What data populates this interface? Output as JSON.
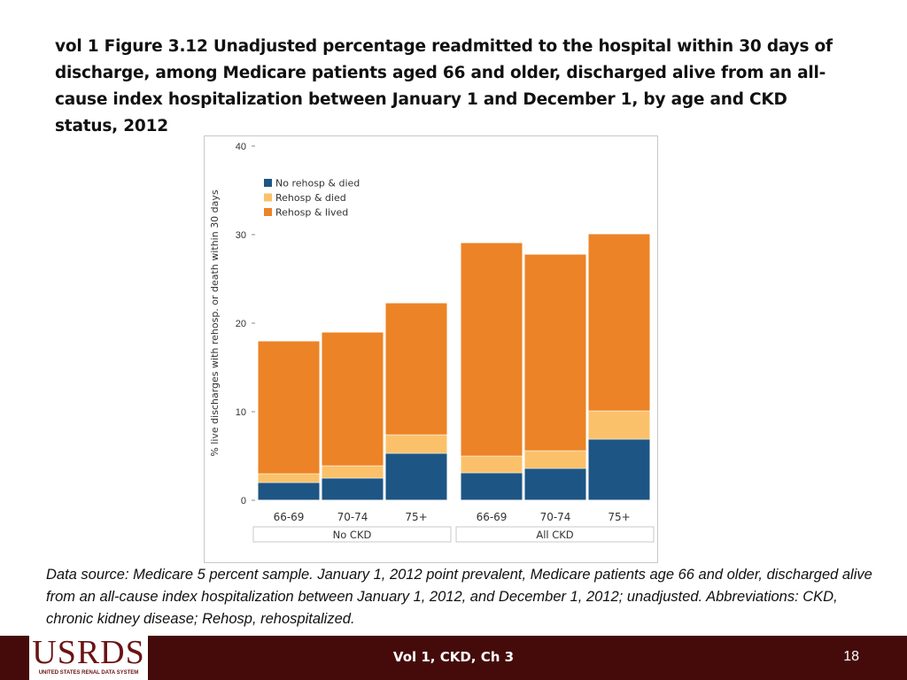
{
  "slide": {
    "title": "vol 1 Figure 3.12  Unadjusted percentage readmitted to the hospital within 30 days of discharge, among Medicare patients aged 66 and older, discharged alive from an all-cause index hospitalization between January 1 and December 1, by age and CKD status, 2012",
    "source": "Data source: Medicare 5 percent sample. January 1, 2012 point prevalent, Medicare patients age 66 and older, discharged alive from an all-cause index hospitalization between January 1, 2012, and December 1, 2012; unadjusted. Abbreviations: CKD, chronic kidney disease; Rehosp, rehospitalized.",
    "footer_center": "Vol 1, CKD, Ch 3",
    "page_number": "18",
    "logo_main": "USRDS",
    "logo_sub": "UNITED STATES RENAL DATA SYSTEM"
  },
  "colors": {
    "no_rehosp_died": "#1d5584",
    "rehosp_died": "#fbc16a",
    "rehosp_lived": "#ec8326",
    "footer_bg": "#450b0b"
  },
  "chart_data": {
    "type": "bar",
    "stacked": true,
    "title": "",
    "xlabel": "",
    "ylabel": "% live discharges with rehosp. or death within 30 days",
    "ylim": [
      0,
      40
    ],
    "yticks": [
      0,
      10,
      20,
      30,
      40
    ],
    "categories": [
      "66-69",
      "70-74",
      "75+",
      "66-69",
      "70-74",
      "75+"
    ],
    "groups": [
      {
        "label": "No CKD",
        "start": 0,
        "count": 3
      },
      {
        "label": "All CKD",
        "start": 3,
        "count": 3
      }
    ],
    "series": [
      {
        "name": "No rehosp & died",
        "color": "#1d5584",
        "values": [
          2.0,
          2.5,
          5.3,
          3.1,
          3.6,
          6.9
        ]
      },
      {
        "name": "Rehosp & died",
        "color": "#fbc16a",
        "values": [
          1.0,
          1.4,
          2.1,
          1.9,
          2.0,
          3.2
        ]
      },
      {
        "name": "Rehosp & lived",
        "color": "#ec8326",
        "values": [
          15.0,
          15.1,
          14.9,
          24.1,
          22.2,
          20.0
        ]
      }
    ],
    "legend_position": "top-left"
  }
}
